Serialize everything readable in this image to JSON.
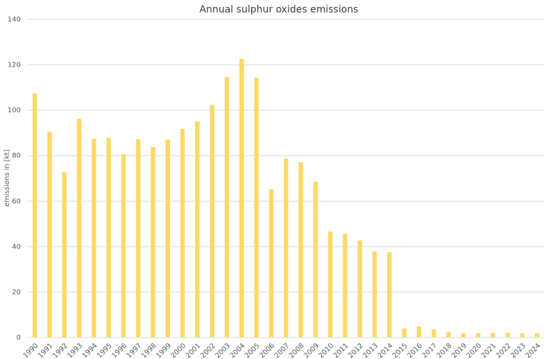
{
  "chart_data": {
    "type": "bar",
    "title": "Annual sulphur oxides emissions",
    "y_label": "emissions in [kt]",
    "categories": [
      "1990",
      "1991",
      "1992",
      "1993",
      "1994",
      "1995",
      "1996",
      "1997",
      "1998",
      "1999",
      "2000",
      "2001",
      "2002",
      "2003",
      "2004",
      "2005",
      "2006",
      "2007",
      "2008",
      "2009",
      "2010",
      "2011",
      "2012",
      "2013",
      "2014",
      "2015",
      "2016",
      "2017",
      "2018",
      "2019",
      "2020",
      "2021",
      "2022",
      "2023",
      "2024"
    ],
    "values": [
      107.4,
      90.5,
      72.7,
      96.3,
      87.5,
      87.8,
      80.8,
      87.2,
      83.8,
      87.2,
      91.8,
      95.1,
      102.4,
      114.6,
      122.6,
      114.3,
      65.2,
      78.7,
      77.1,
      68.6,
      46.6,
      45.7,
      42.7,
      37.8,
      37.5,
      4.0,
      4.9,
      3.7,
      2.4,
      1.8,
      1.9,
      2.0,
      2.1,
      1.9,
      1.9
    ],
    "color": "#ffd966",
    "ylim": [
      0,
      140
    ],
    "yticks": [
      0,
      20,
      40,
      60,
      80,
      100,
      120,
      140
    ],
    "grid": true
  }
}
